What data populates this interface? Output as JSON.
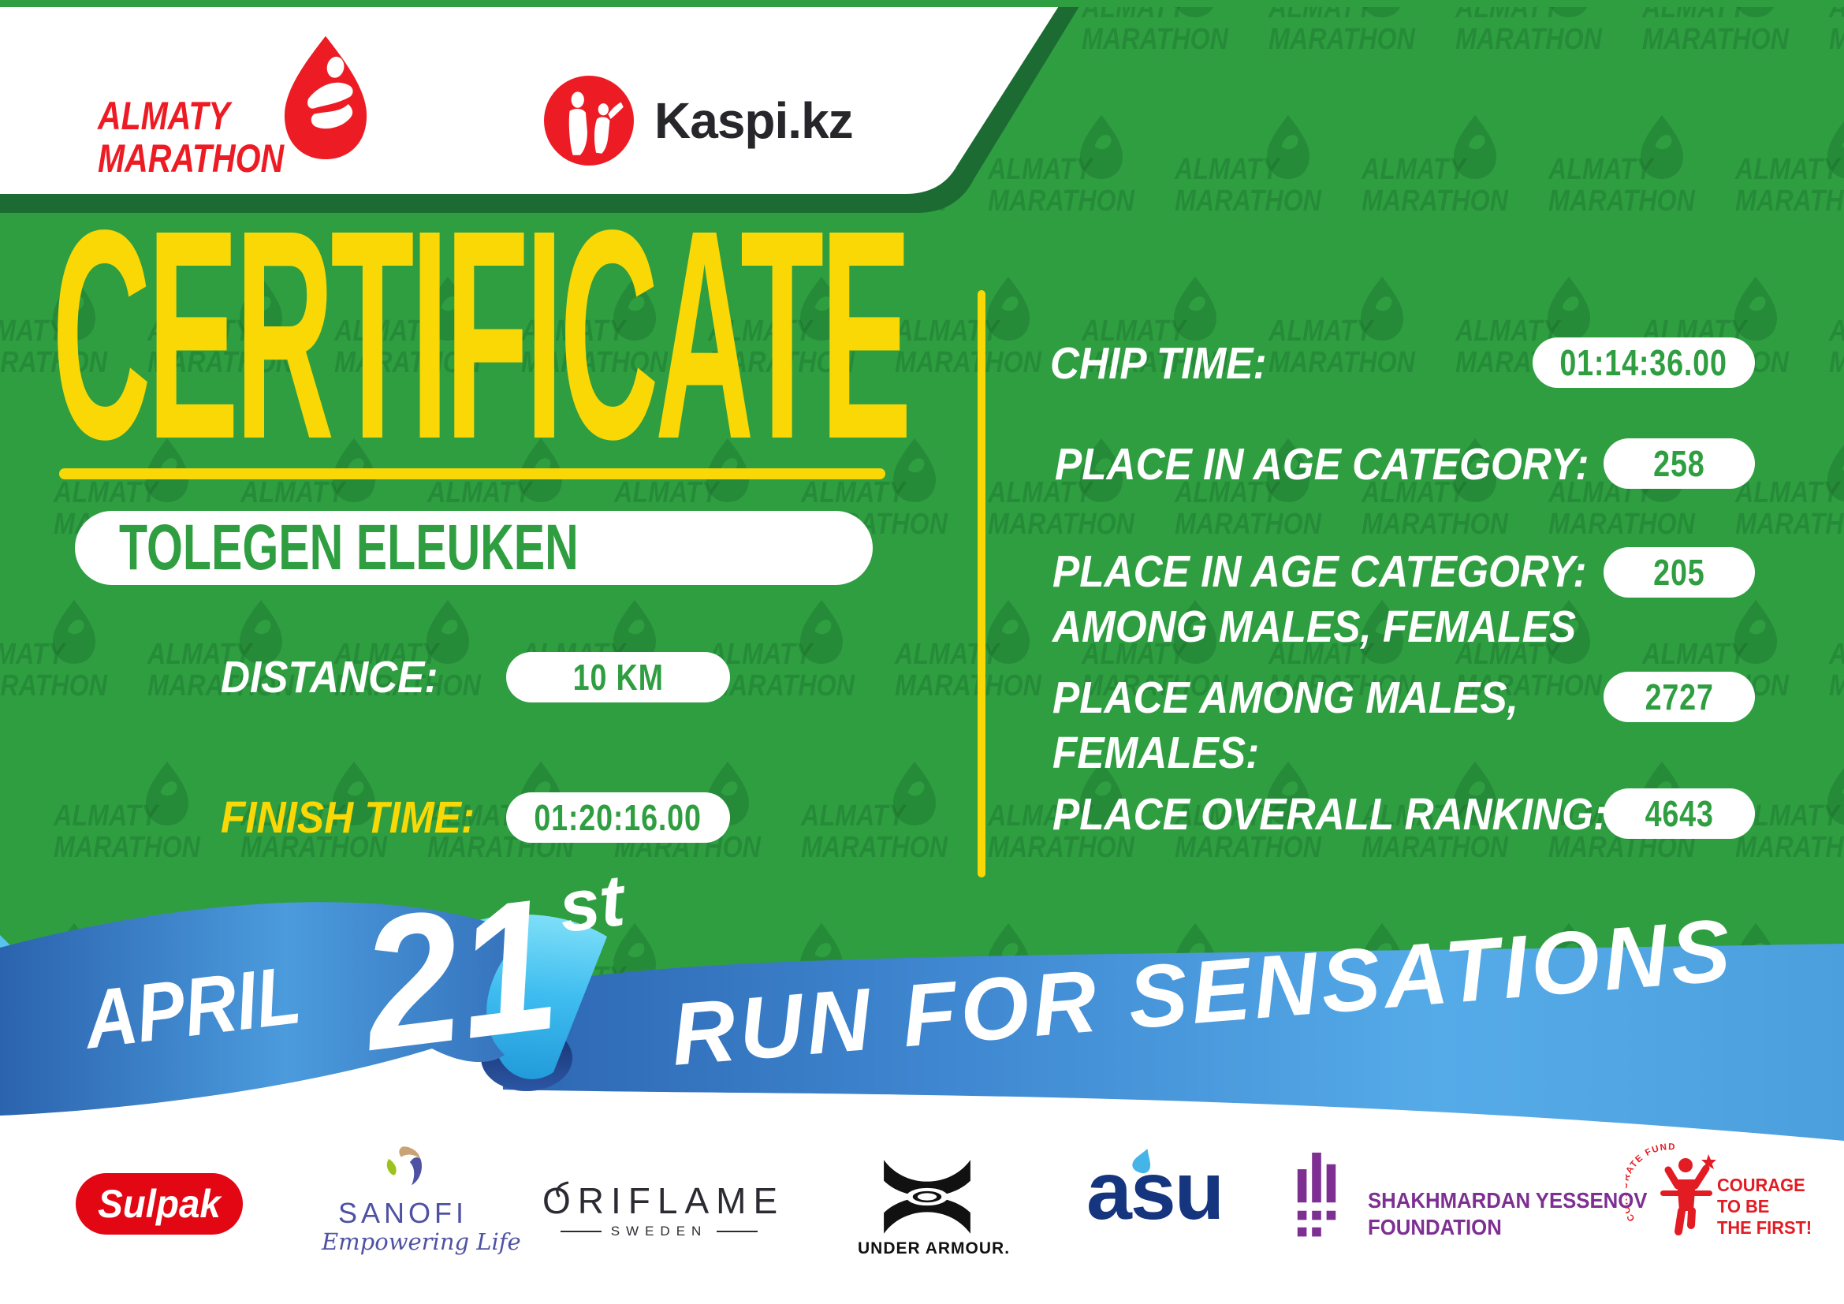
{
  "header": {
    "almaty": {
      "line1": "ALMATY",
      "line2": "MARATHON"
    },
    "kaspi": {
      "name": "Kaspi.kz"
    }
  },
  "certificate": {
    "title": "CERTIFICATE",
    "participant_name": "TOLEGEN ELEUKEN",
    "distance": {
      "label": "DISTANCE:",
      "value": "10 KM"
    },
    "finish_time": {
      "label": "FINISH TIME:",
      "value": "01:20:16.00"
    }
  },
  "results": {
    "chip_time": {
      "label": "CHIP TIME:",
      "value": "01:14:36.00"
    },
    "place_age_category": {
      "label": "PLACE IN AGE CATEGORY:",
      "value": "258"
    },
    "place_age_category_gender": {
      "label_line1": "PLACE IN AGE CATEGORY:",
      "label_line2": "AMONG MALES, FEMALES",
      "value": "205"
    },
    "place_gender": {
      "label_line1": "PLACE AMONG MALES,",
      "label_line2": "FEMALES:",
      "value": "2727"
    },
    "place_overall": {
      "label": "PLACE OVERALL RANKING:",
      "value": "4643"
    }
  },
  "ribbon": {
    "month": "APRIL",
    "day": "21",
    "day_suffix": "st",
    "slogan": "RUN FOR SENSATIONS"
  },
  "watermark": {
    "line1": "ALMATY",
    "line2": "MARATHON"
  },
  "sponsors": {
    "sulpak": {
      "name": "Sulpak"
    },
    "sanofi": {
      "name": "SANOFI",
      "tagline": "Empowering Life"
    },
    "oriflame": {
      "name": "ORIFLAME",
      "country": "SWEDEN"
    },
    "under_armour": {
      "name": "UNDER ARMOUR."
    },
    "asu": {
      "name": "asu"
    },
    "yessenov": {
      "line1": "SHAKHMARDAN YESSENOV",
      "line2": "FOUNDATION"
    },
    "courage": {
      "arc_text": "CORPORATE FUND",
      "line1": "COURAGE",
      "line2": "TO BE",
      "line3": "THE FIRST!"
    }
  },
  "colors": {
    "green": "#2f9e41",
    "dark_green": "#1c6b33",
    "yellow": "#f9d806",
    "red": "#ed1c24",
    "ribbon_blue": "#3b7cc6",
    "ribbon_light_blue": "#55abe8",
    "ribbon_cyan": "#49c3f2",
    "ribbon_navy": "#1d3d7c",
    "sulpak_red": "#e30613",
    "sanofi_blue": "#4f52a3",
    "asu_navy": "#16357f",
    "asu_cyan": "#45b5e8",
    "yessenov_purple": "#7d2f92",
    "courage_red": "#e31b23"
  }
}
